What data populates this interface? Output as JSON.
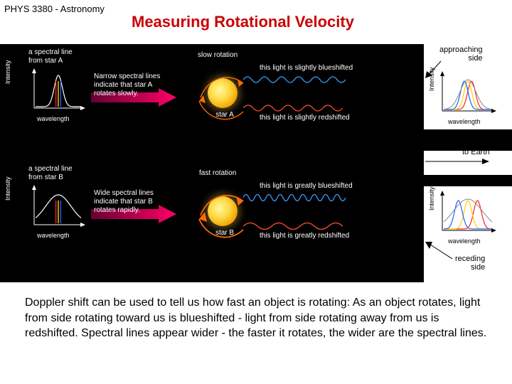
{
  "course": "PHYS 3380 - Astronomy",
  "title": "Measuring Rotational Velocity",
  "caption": "Doppler shift can be used to tell us how fast an object is rotating: As an object rotates, light from side rotating toward us is blueshifted - light from side rotating away from us is redshifted. Spectral lines appear wider - the faster it rotates, the wider are the spectral lines.",
  "diagram": {
    "bg": "#000000",
    "starA": {
      "graph": {
        "title": "a spectral line\nfrom star A",
        "ylabel": "Intensity",
        "xlabel": "wavelength",
        "peak_width": 0.18,
        "curve_color": "#ffffff",
        "marker_colors": [
          "#ff2020",
          "#ffd000",
          "#2060ff"
        ]
      },
      "arrow_text": "Narrow spectral lines\nindicate that star A\nrotates slowly.",
      "rotation_label": "slow rotation",
      "star_label": "star A",
      "blue_text": "this light is slightly blueshifted",
      "red_text": "this light is slightly redshifted"
    },
    "starB": {
      "graph": {
        "title": "a spectral line\nfrom star B",
        "ylabel": "Intensity",
        "xlabel": "wavelength",
        "peak_width": 0.55,
        "curve_color": "#ffffff",
        "marker_colors": [
          "#ff2020",
          "#ffd000",
          "#2060ff"
        ]
      },
      "arrow_text": "Wide spectral lines\nindicate that star B\nrotates rapidly.",
      "rotation_label": "fast rotation",
      "star_label": "star B",
      "blue_text": "this light is greatly blueshifted",
      "red_text": "this light is greatly redshifted"
    },
    "approaching_label": "approaching\nside",
    "receding_label": "receding\nside",
    "to_earth_label": "to Earth",
    "right_graph_A": {
      "ylabel": "Intensity",
      "xlabel": "wavelength",
      "spread": 0.18
    },
    "right_graph_B": {
      "ylabel": "Intensity",
      "xlabel": "wavelength",
      "spread": 0.48
    },
    "colors": {
      "arrow_grad_start": "#660033",
      "arrow_grad_end": "#ff0066",
      "blue_wave": "#3aa0ff",
      "red_wave": "#ff5030",
      "star_fill": "#ffd840",
      "rot_arrow": "#ff6a00"
    }
  }
}
